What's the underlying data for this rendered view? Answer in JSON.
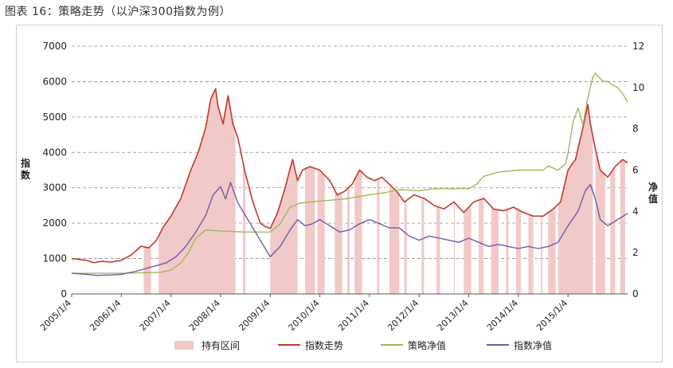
{
  "figure": {
    "title": "图表 16：策略走势（以沪深300指数为例）"
  },
  "colors": {
    "hold": "#f2c9c9",
    "index": "#c0392b",
    "strategy": "#9bbb59",
    "index_nav": "#6f5aa8",
    "grid": "#8c8c8c"
  },
  "chart_data": {
    "type": "line",
    "title": "图表 16：策略走势（以沪深300指数为例）",
    "ylabel": "指数",
    "y2label": "净值",
    "ylim": [
      0,
      7000
    ],
    "y2lim": [
      0,
      12
    ],
    "yticks": [
      0,
      1000,
      2000,
      3000,
      4000,
      5000,
      6000,
      7000
    ],
    "y2ticks": [
      0,
      2,
      4,
      6,
      8,
      10,
      12
    ],
    "x_tick_labels": [
      "2005/1/4",
      "2006/1/4",
      "2007/1/4",
      "2008/1/4",
      "2009/1/4",
      "2010/1/4",
      "2011/1/4",
      "2012/1/4",
      "2013/1/4",
      "2014/1/4",
      "2015/1/4"
    ],
    "xlim": [
      2005.0,
      2016.2
    ],
    "grid": "horizontal dashed",
    "legend": "bottom",
    "series": [
      {
        "name": "指数走势",
        "axis": "left",
        "x": [
          2005.0,
          2005.3,
          2005.45,
          2005.6,
          2005.8,
          2006.0,
          2006.2,
          2006.4,
          2006.55,
          2006.7,
          2006.85,
          2007.0,
          2007.2,
          2007.4,
          2007.55,
          2007.7,
          2007.8,
          2007.9,
          2007.95,
          2008.05,
          2008.15,
          2008.25,
          2008.35,
          2008.5,
          2008.65,
          2008.8,
          2008.9,
          2009.0,
          2009.15,
          2009.3,
          2009.45,
          2009.55,
          2009.65,
          2009.8,
          2010.0,
          2010.2,
          2010.35,
          2010.5,
          2010.65,
          2010.8,
          2010.95,
          2011.1,
          2011.25,
          2011.4,
          2011.55,
          2011.7,
          2011.9,
          2012.1,
          2012.3,
          2012.5,
          2012.7,
          2012.9,
          2013.1,
          2013.3,
          2013.5,
          2013.7,
          2013.9,
          2014.1,
          2014.3,
          2014.5,
          2014.7,
          2014.85,
          2015.0,
          2015.15,
          2015.3,
          2015.4,
          2015.45,
          2015.55,
          2015.65,
          2015.8,
          2015.95,
          2016.1,
          2016.2
        ],
        "y": [
          1000,
          950,
          880,
          920,
          900,
          950,
          1100,
          1350,
          1300,
          1500,
          1900,
          2200,
          2700,
          3500,
          4000,
          4700,
          5500,
          5800,
          5300,
          4800,
          5600,
          4800,
          4400,
          3400,
          2600,
          2000,
          1900,
          1850,
          2300,
          3000,
          3800,
          3200,
          3500,
          3600,
          3500,
          3200,
          2800,
          2900,
          3100,
          3500,
          3300,
          3200,
          3300,
          3100,
          2900,
          2600,
          2800,
          2700,
          2500,
          2400,
          2600,
          2300,
          2600,
          2700,
          2400,
          2350,
          2450,
          2300,
          2200,
          2200,
          2400,
          2600,
          3500,
          3800,
          4700,
          5350,
          4800,
          4100,
          3500,
          3300,
          3600,
          3800,
          3700
        ]
      },
      {
        "name": "策略净值",
        "axis": "right",
        "x": [
          2005.0,
          2006.0,
          2006.8,
          2007.0,
          2007.2,
          2007.35,
          2007.5,
          2007.7,
          2008.0,
          2008.5,
          2008.9,
          2009.0,
          2009.2,
          2009.4,
          2009.6,
          2010.0,
          2010.5,
          2011.0,
          2011.3,
          2011.6,
          2012.0,
          2012.3,
          2012.6,
          2013.0,
          2013.15,
          2013.3,
          2013.6,
          2014.0,
          2014.5,
          2014.6,
          2014.8,
          2014.95,
          2015.0,
          2015.1,
          2015.2,
          2015.3,
          2015.4,
          2015.5,
          2015.55,
          2015.7,
          2015.8,
          2015.9,
          2016.0,
          2016.1,
          2016.2
        ],
        "y": [
          1.0,
          1.0,
          1.05,
          1.15,
          1.5,
          2.0,
          2.7,
          3.1,
          3.05,
          3.0,
          3.0,
          3.0,
          3.4,
          4.2,
          4.4,
          4.5,
          4.6,
          4.8,
          4.9,
          5.05,
          5.0,
          5.1,
          5.1,
          5.1,
          5.3,
          5.7,
          5.9,
          6.0,
          6.0,
          6.2,
          6.0,
          6.3,
          6.8,
          8.3,
          9.0,
          8.2,
          9.5,
          10.5,
          10.7,
          10.3,
          10.3,
          10.1,
          10.0,
          9.7,
          9.3
        ]
      },
      {
        "name": "指数净值",
        "axis": "right",
        "x": [
          2005.0,
          2005.3,
          2005.5,
          2005.8,
          2006.0,
          2006.3,
          2006.6,
          2006.9,
          2007.1,
          2007.3,
          2007.5,
          2007.7,
          2007.85,
          2008.0,
          2008.1,
          2008.2,
          2008.35,
          2008.5,
          2008.7,
          2008.9,
          2009.0,
          2009.2,
          2009.4,
          2009.55,
          2009.7,
          2009.85,
          2010.0,
          2010.2,
          2010.4,
          2010.6,
          2010.8,
          2011.0,
          2011.2,
          2011.4,
          2011.6,
          2011.8,
          2012.0,
          2012.2,
          2012.4,
          2012.6,
          2012.8,
          2013.0,
          2013.2,
          2013.4,
          2013.6,
          2013.8,
          2014.0,
          2014.2,
          2014.4,
          2014.6,
          2014.8,
          2015.0,
          2015.2,
          2015.35,
          2015.45,
          2015.55,
          2015.65,
          2015.8,
          2016.0,
          2016.2
        ],
        "y": [
          1.0,
          0.95,
          0.9,
          0.92,
          0.95,
          1.1,
          1.3,
          1.5,
          1.8,
          2.3,
          3.0,
          3.8,
          4.8,
          5.2,
          4.6,
          5.4,
          4.4,
          3.8,
          3.0,
          2.2,
          1.8,
          2.3,
          3.1,
          3.6,
          3.3,
          3.4,
          3.6,
          3.3,
          3.0,
          3.1,
          3.4,
          3.6,
          3.4,
          3.2,
          3.2,
          2.8,
          2.6,
          2.8,
          2.7,
          2.6,
          2.5,
          2.7,
          2.5,
          2.3,
          2.4,
          2.3,
          2.2,
          2.3,
          2.2,
          2.3,
          2.5,
          3.3,
          4.0,
          5.0,
          5.3,
          4.6,
          3.6,
          3.3,
          3.6,
          3.9
        ]
      }
    ],
    "holding_intervals_name": "持有区间",
    "holding_intervals": [
      [
        2006.45,
        2006.6
      ],
      [
        2006.75,
        2008.3
      ],
      [
        2008.45,
        2008.5
      ],
      [
        2009.0,
        2009.55
      ],
      [
        2009.7,
        2009.9
      ],
      [
        2009.95,
        2010.1
      ],
      [
        2010.3,
        2010.45
      ],
      [
        2010.55,
        2010.6
      ],
      [
        2010.7,
        2010.85
      ],
      [
        2011.15,
        2011.2
      ],
      [
        2011.4,
        2011.6
      ],
      [
        2011.7,
        2011.75
      ],
      [
        2012.05,
        2012.1
      ],
      [
        2012.35,
        2012.42
      ],
      [
        2012.7,
        2012.72
      ],
      [
        2012.9,
        2013.05
      ],
      [
        2013.2,
        2013.3
      ],
      [
        2013.45,
        2013.6
      ],
      [
        2013.75,
        2013.8
      ],
      [
        2013.95,
        2014.05
      ],
      [
        2014.2,
        2014.3
      ],
      [
        2014.45,
        2014.48
      ],
      [
        2014.6,
        2014.75
      ],
      [
        2014.8,
        2015.5
      ],
      [
        2015.55,
        2015.75
      ],
      [
        2015.85,
        2015.95
      ],
      [
        2016.05,
        2016.15
      ]
    ],
    "legend_labels": [
      "持有区间",
      "指数走势",
      "策略净值",
      "指数净值"
    ]
  }
}
